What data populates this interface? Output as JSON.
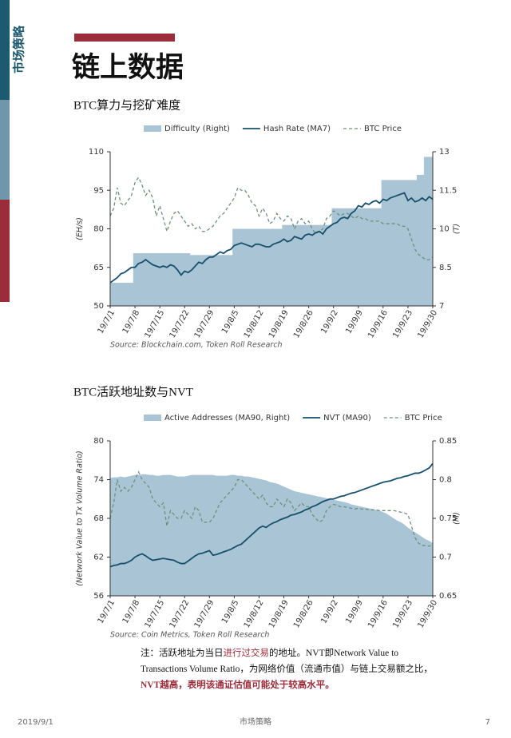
{
  "sidebar": "市场策略",
  "header": {
    "title": "链上数据"
  },
  "chart_data": [
    {
      "type": "line",
      "title": "BTC算力与挖矿难度",
      "y_label": "(EH/s)",
      "y2_label": "(T)",
      "source": "Source: Blockchain.com, Token Roll Research",
      "categories": [
        "19/7/1",
        null,
        null,
        null,
        null,
        null,
        null,
        "19/7/8",
        null,
        null,
        null,
        null,
        null,
        null,
        "19/7/15",
        null,
        null,
        null,
        null,
        null,
        null,
        "19/7/22",
        null,
        null,
        null,
        null,
        null,
        null,
        "19/7/29",
        null,
        null,
        null,
        null,
        null,
        null,
        "19/8/5",
        null,
        null,
        null,
        null,
        null,
        null,
        "19/8/12",
        null,
        null,
        null,
        null,
        null,
        null,
        "19/8/19",
        null,
        null,
        null,
        null,
        null,
        null,
        "19/8/26",
        null,
        null,
        null,
        null,
        null,
        null,
        "19/9/2",
        null,
        null,
        null,
        null,
        null,
        null,
        "19/9/9",
        null,
        null,
        null,
        null,
        null,
        null,
        "19/9/16",
        null,
        null,
        null,
        null,
        null,
        null,
        "19/9/23",
        null,
        null,
        null,
        null,
        null,
        null,
        "19/9/30"
      ],
      "ylim": [
        50,
        110
      ],
      "yticks": [
        50,
        65,
        80,
        95,
        110
      ],
      "y2lim": [
        7,
        13
      ],
      "y2ticks": [
        7,
        8.5,
        10,
        11.5,
        13
      ],
      "series": [
        {
          "name": "Difficulty (Right)",
          "color": "#a9c4d4",
          "style": "step-area",
          "axis": "y2",
          "values": [
            7.9,
            7.9,
            7.9,
            7.9,
            7.9,
            7.9,
            7.9,
            9.05,
            9.05,
            9.05,
            9.05,
            9.05,
            9.05,
            9.05,
            9.05,
            9.05,
            9.05,
            9.05,
            9.05,
            9.05,
            9.05,
            9.05,
            9.05,
            8.98,
            8.98,
            8.98,
            8.98,
            8.98,
            8.98,
            8.98,
            8.98,
            8.98,
            8.98,
            8.98,
            8.98,
            10.0,
            10.0,
            10.0,
            10.0,
            10.0,
            10.0,
            10.0,
            10.0,
            10.0,
            10.0,
            10.0,
            10.0,
            10.0,
            10.0,
            10.15,
            10.15,
            10.15,
            10.15,
            10.15,
            10.15,
            10.15,
            10.15,
            10.15,
            10.15,
            10.15,
            10.15,
            10.15,
            10.15,
            10.8,
            10.8,
            10.8,
            10.8,
            10.8,
            10.8,
            10.8,
            10.8,
            10.8,
            10.8,
            10.8,
            10.8,
            10.8,
            10.8,
            11.9,
            11.9,
            11.9,
            11.9,
            11.9,
            11.9,
            11.9,
            11.9,
            11.9,
            11.9,
            12.1,
            12.1,
            12.8,
            12.8,
            12.8
          ]
        },
        {
          "name": "Hash Rate (MA7)",
          "color": "#17506c",
          "style": "line",
          "values": [
            59,
            60,
            61,
            62.5,
            63,
            64,
            65,
            65,
            66.5,
            67,
            68,
            67,
            66,
            65.5,
            65,
            65.5,
            65,
            66,
            65.5,
            64,
            62,
            63.5,
            63,
            64,
            65.5,
            67,
            66.5,
            68,
            69,
            69,
            70,
            71,
            70.5,
            71.5,
            72,
            73.5,
            74,
            74.5,
            74,
            73.5,
            73,
            74,
            74,
            73.5,
            73,
            73,
            74,
            74.5,
            75,
            76,
            75,
            75.5,
            77,
            76.5,
            76,
            77.5,
            78,
            77.5,
            78.5,
            79,
            78,
            80,
            81,
            82,
            82.5,
            84,
            84.5,
            84,
            86,
            87,
            89,
            88.5,
            90,
            89.5,
            90.5,
            91,
            90,
            91.5,
            91,
            92,
            92.5,
            93,
            93.5,
            94,
            91,
            92,
            90.5,
            91,
            92,
            91,
            92.5,
            91.5
          ]
        },
        {
          "name": "BTC Price",
          "color": "#6f8f7b",
          "style": "dashed",
          "axis": "y2",
          "values": [
            10.5,
            10.8,
            11.6,
            11.0,
            10.9,
            11.1,
            11.3,
            11.8,
            12.0,
            11.7,
            11.3,
            11.5,
            11.2,
            10.5,
            10.9,
            10.4,
            9.9,
            10.3,
            10.6,
            10.7,
            10.5,
            10.3,
            10.1,
            10.2,
            10.0,
            10.1,
            9.9,
            9.9,
            10.0,
            10.1,
            10.3,
            10.5,
            10.6,
            10.8,
            11.0,
            11.2,
            11.6,
            11.5,
            11.5,
            11.3,
            11.0,
            10.9,
            10.5,
            10.8,
            10.6,
            10.2,
            10.3,
            10.6,
            10.4,
            10.3,
            10.5,
            10.4,
            10.0,
            10.3,
            10.4,
            10.2,
            10.3,
            10.0,
            9.8,
            9.9,
            10.0,
            10.4,
            10.5,
            10.7,
            10.6,
            10.5,
            10.6,
            10.6,
            10.5,
            10.4,
            10.5,
            10.4,
            10.4,
            10.3,
            10.3,
            10.3,
            10.3,
            10.2,
            10.2,
            10.2,
            10.2,
            10.2,
            10.1,
            10.1,
            10.0,
            9.6,
            9.2,
            9.0,
            8.9,
            8.8,
            8.8,
            8.9
          ]
        }
      ]
    },
    {
      "type": "line",
      "title": "BTC活跃地址数与NVT",
      "y_label": "(Network Value to Tx Volume Ratio)",
      "y2_label": "(M)",
      "source": "Source: Coin Metrics, Token Roll Research",
      "categories": [
        "19/7/1",
        null,
        null,
        null,
        null,
        null,
        null,
        "19/7/8",
        null,
        null,
        null,
        null,
        null,
        null,
        "19/7/15",
        null,
        null,
        null,
        null,
        null,
        null,
        "19/7/22",
        null,
        null,
        null,
        null,
        null,
        null,
        "19/7/29",
        null,
        null,
        null,
        null,
        null,
        null,
        "19/8/5",
        null,
        null,
        null,
        null,
        null,
        null,
        "19/8/12",
        null,
        null,
        null,
        null,
        null,
        null,
        "19/8/19",
        null,
        null,
        null,
        null,
        null,
        null,
        "19/8/26",
        null,
        null,
        null,
        null,
        null,
        null,
        "19/9/2",
        null,
        null,
        null,
        null,
        null,
        null,
        "19/9/9",
        null,
        null,
        null,
        null,
        null,
        null,
        "19/9/16",
        null,
        null,
        null,
        null,
        null,
        null,
        "19/9/23",
        null,
        null,
        null,
        null,
        null,
        null,
        "19/9/30"
      ],
      "ylim": [
        56,
        80
      ],
      "yticks": [
        56,
        62,
        68,
        74,
        80
      ],
      "y2lim": [
        0.65,
        0.85
      ],
      "y2ticks": [
        0.65,
        0.7,
        0.75,
        0.8,
        0.85
      ],
      "series": [
        {
          "name": "Active Addresses (MA90, Right)",
          "color": "#a9c4d4",
          "style": "area",
          "axis": "y2",
          "values": [
            0.802,
            0.803,
            0.803,
            0.804,
            0.803,
            0.804,
            0.805,
            0.806,
            0.806,
            0.807,
            0.807,
            0.806,
            0.806,
            0.805,
            0.805,
            0.806,
            0.806,
            0.806,
            0.805,
            0.804,
            0.804,
            0.804,
            0.805,
            0.806,
            0.806,
            0.806,
            0.806,
            0.806,
            0.806,
            0.806,
            0.805,
            0.805,
            0.805,
            0.805,
            0.806,
            0.806,
            0.805,
            0.805,
            0.804,
            0.804,
            0.803,
            0.802,
            0.801,
            0.8,
            0.799,
            0.797,
            0.796,
            0.795,
            0.793,
            0.791,
            0.789,
            0.787,
            0.785,
            0.784,
            0.783,
            0.782,
            0.781,
            0.78,
            0.779,
            0.778,
            0.777,
            0.776,
            0.775,
            0.774,
            0.773,
            0.772,
            0.771,
            0.77,
            0.768,
            0.767,
            0.766,
            0.765,
            0.764,
            0.763,
            0.762,
            0.761,
            0.76,
            0.758,
            0.756,
            0.753,
            0.75,
            0.747,
            0.745,
            0.742,
            0.738,
            0.735,
            0.732,
            0.729,
            0.726,
            0.723,
            0.721,
            0.718
          ]
        },
        {
          "name": "NVT (MA90)",
          "color": "#17506c",
          "style": "line",
          "values": [
            60.5,
            60.7,
            60.8,
            61,
            61,
            61.2,
            61.5,
            62,
            62.3,
            62.5,
            62.2,
            61.8,
            61.5,
            61.6,
            61.7,
            61.8,
            61.7,
            61.6,
            61.5,
            61.2,
            61,
            61,
            61.4,
            61.8,
            62.2,
            62.5,
            62.6,
            62.8,
            63,
            62.3,
            62.4,
            62.6,
            62.8,
            63,
            63.2,
            63.5,
            63.8,
            64,
            64.5,
            65,
            65.5,
            66,
            66.5,
            66.8,
            66.6,
            67,
            67.3,
            67.5,
            67.8,
            68,
            68.2,
            68.5,
            68.6,
            68.8,
            69,
            69.3,
            69.5,
            69.8,
            70,
            70.3,
            70.6,
            70.8,
            71,
            71,
            71.2,
            71.4,
            71.5,
            71.7,
            71.9,
            72,
            72.2,
            72.4,
            72.6,
            72.8,
            73,
            73.2,
            73.4,
            73.6,
            73.7,
            73.8,
            74,
            74.2,
            74.3,
            74.5,
            74.6,
            74.8,
            75,
            75,
            75.2,
            75.5,
            75.8,
            76.5
          ]
        },
        {
          "name": "BTC Price",
          "color": "#6f8f7b",
          "style": "dashed",
          "axis": "y2",
          "values": [
            0.75,
            0.77,
            0.8,
            0.785,
            0.79,
            0.785,
            0.79,
            0.8,
            0.81,
            0.8,
            0.795,
            0.79,
            0.775,
            0.77,
            0.765,
            0.77,
            0.74,
            0.76,
            0.755,
            0.75,
            0.75,
            0.76,
            0.755,
            0.75,
            0.765,
            0.76,
            0.745,
            0.745,
            0.745,
            0.75,
            0.76,
            0.77,
            0.775,
            0.78,
            0.785,
            0.79,
            0.8,
            0.8,
            0.795,
            0.79,
            0.785,
            0.78,
            0.775,
            0.78,
            0.77,
            0.765,
            0.765,
            0.775,
            0.77,
            0.765,
            0.775,
            0.77,
            0.76,
            0.765,
            0.77,
            0.765,
            0.765,
            0.755,
            0.75,
            0.745,
            0.748,
            0.76,
            0.765,
            0.768,
            0.767,
            0.765,
            0.765,
            0.764,
            0.763,
            0.762,
            0.763,
            0.762,
            0.762,
            0.761,
            0.761,
            0.761,
            0.76,
            0.76,
            0.76,
            0.76,
            0.76,
            0.759,
            0.758,
            0.757,
            0.755,
            0.74,
            0.725,
            0.718,
            0.715,
            0.715,
            0.714,
            0.716
          ]
        }
      ]
    }
  ],
  "note": [
    "注：活跃地址为当日",
    "进行过交易",
    "的地址。NVT即Network Value to Transactions Volume Ratio，为网络价值（流通市值）与链上交易额之比，",
    "NVT越高，表明该通证估值可能处于较高水平。"
  ],
  "footer": {
    "date": "2019/9/1",
    "section": "市场策略",
    "page": "7"
  }
}
